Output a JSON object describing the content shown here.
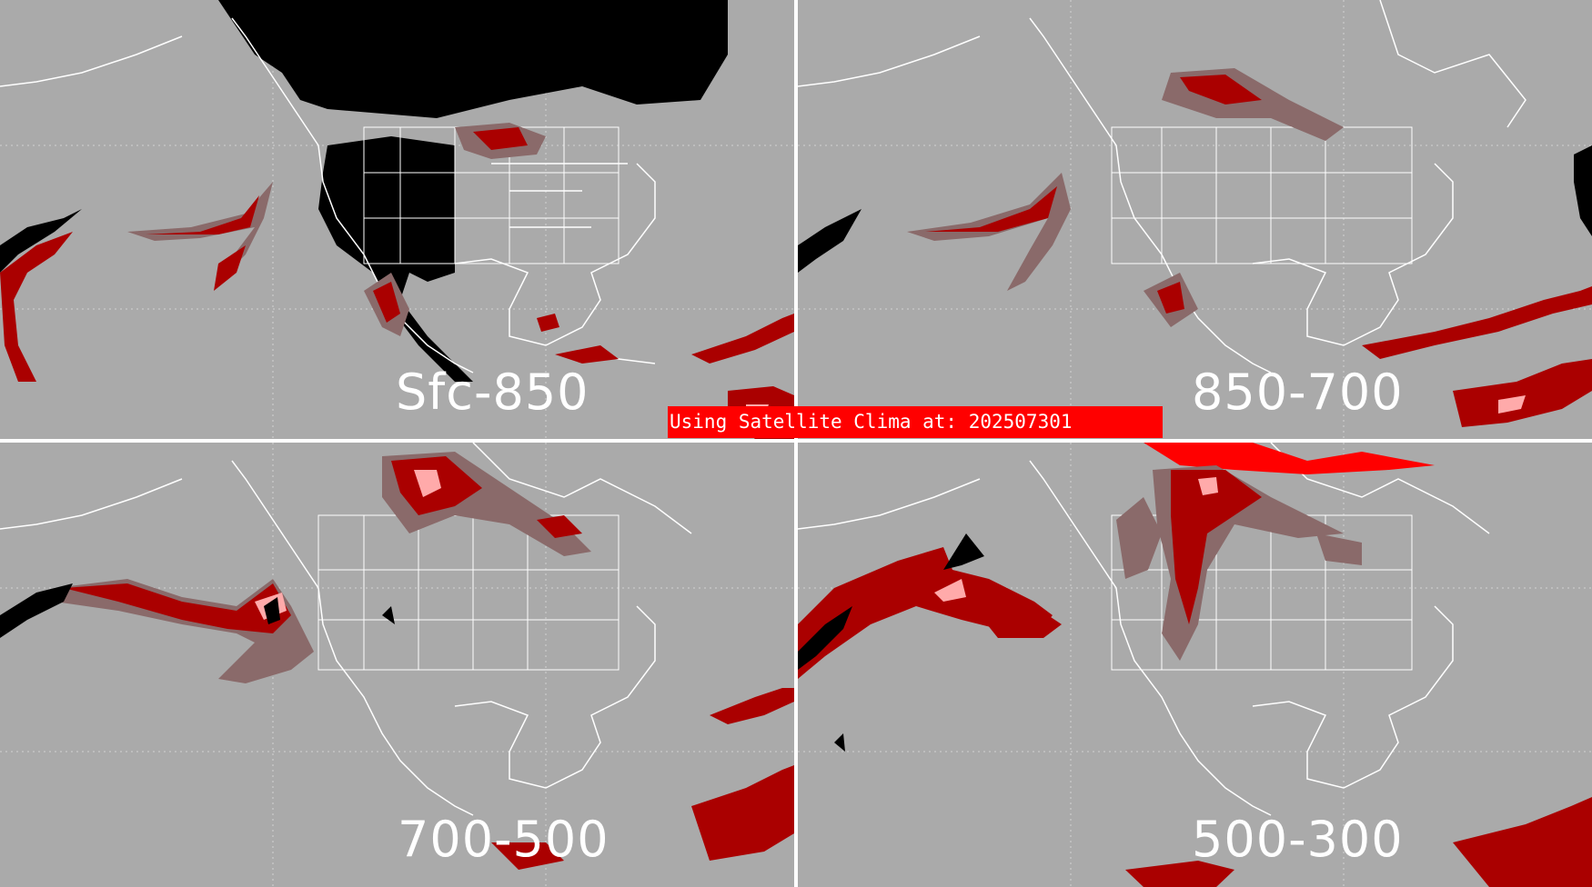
{
  "banner": {
    "text": "Using Satellite Clima at: 202507301",
    "background": "#ff0000"
  },
  "panels": [
    {
      "id": "sfc-850",
      "label": "Sfc-850"
    },
    {
      "id": "850-700",
      "label": "850-700"
    },
    {
      "id": "700-500",
      "label": "700-500"
    },
    {
      "id": "500-300",
      "label": "500-300"
    }
  ],
  "colors": {
    "background": "#aaaaaa",
    "coastlines": "#ffffff",
    "dark_red": "#aa0000",
    "brown": "#8a6a6a",
    "pink": "#ffaaaa",
    "bright_red": "#ff0000",
    "no_data": "#000000",
    "divider": "#ffffff"
  }
}
